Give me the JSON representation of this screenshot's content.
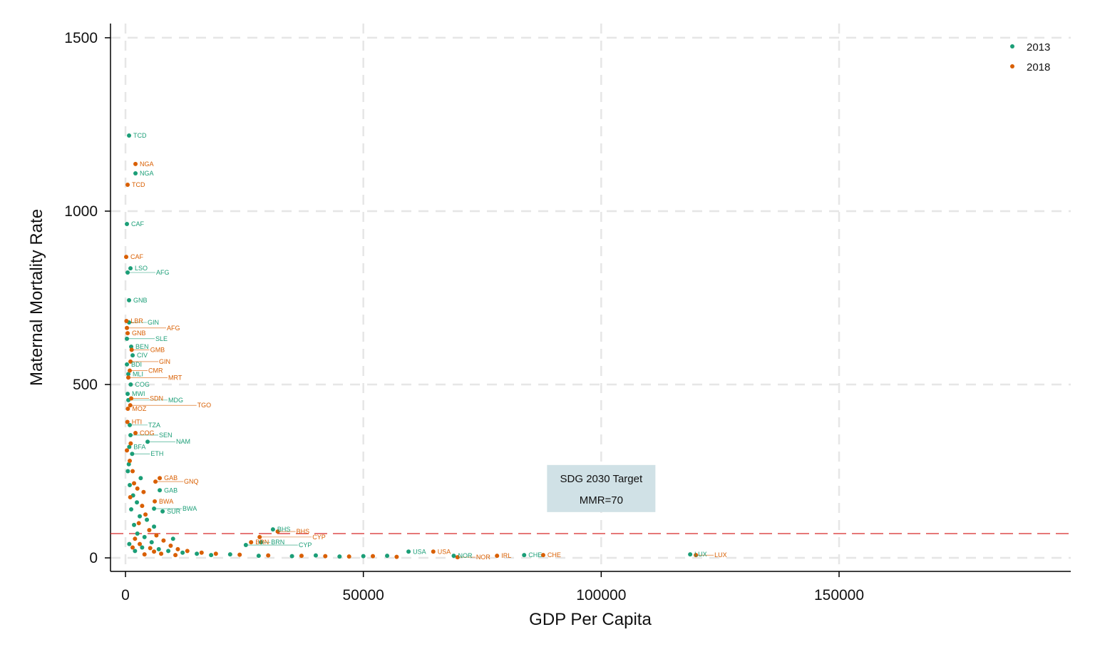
{
  "chart_data": {
    "type": "scatter",
    "title": "",
    "xlabel": "GDP Per Capita",
    "ylabel": "Maternal Mortality Rate",
    "xlim": [
      -3150,
      198700
    ],
    "ylim": [
      -39,
      1541
    ],
    "xticks": [
      0,
      50000,
      100000,
      150000
    ],
    "yticks": [
      0,
      500,
      1000,
      1500
    ],
    "grid": true,
    "legend_position": "top-right",
    "reference_line": {
      "y": 70,
      "color": "#d62728",
      "style": "dashed"
    },
    "annotation": {
      "lines": [
        "SDG 2030 Target",
        "MMR=70"
      ],
      "x": 100000,
      "y": 200,
      "background": "#d0e1e6"
    },
    "series": [
      {
        "name": "2013",
        "color": "#1b9e77",
        "points": [
          [
            750,
            1218,
            "TCD"
          ],
          [
            2100,
            1109,
            "NGA"
          ],
          [
            300,
            963,
            "CAF"
          ],
          [
            1050,
            835,
            "LSO"
          ],
          [
            450,
            823,
            "AFG"
          ],
          [
            750,
            743,
            "GNB"
          ],
          [
            750,
            679,
            "GIN"
          ],
          [
            300,
            632,
            "SLE"
          ],
          [
            1200,
            609,
            "BEN"
          ],
          [
            1500,
            584,
            "CIV"
          ],
          [
            300,
            558,
            "BDI"
          ],
          [
            600,
            530,
            "MLI"
          ],
          [
            1100,
            500,
            "COG"
          ],
          [
            450,
            473,
            "MWI"
          ],
          [
            600,
            455,
            "MDG"
          ],
          [
            900,
            383,
            "TZA"
          ],
          [
            1050,
            354,
            "SEN"
          ],
          [
            4650,
            335,
            "NAM"
          ],
          [
            800,
            320,
            "BFA"
          ],
          [
            1400,
            300,
            "ETH"
          ],
          [
            7200,
            195,
            "GAB"
          ],
          [
            6000,
            142,
            "BWA"
          ],
          [
            7800,
            134,
            "SUR"
          ],
          [
            31000,
            82,
            "BHS"
          ],
          [
            25300,
            37,
            "CYP"
          ],
          [
            28500,
            45,
            "BRN"
          ],
          [
            59500,
            18,
            "USA"
          ],
          [
            69000,
            6,
            "NOR"
          ],
          [
            83800,
            8,
            "CHE"
          ],
          [
            118700,
            10,
            "LUX"
          ],
          [
            500,
            250,
            ""
          ],
          [
            900,
            210,
            ""
          ],
          [
            1600,
            180,
            ""
          ],
          [
            2400,
            160,
            ""
          ],
          [
            3000,
            120,
            ""
          ],
          [
            1800,
            95,
            ""
          ],
          [
            2500,
            70,
            ""
          ],
          [
            4000,
            60,
            ""
          ],
          [
            5500,
            45,
            ""
          ],
          [
            3500,
            30,
            ""
          ],
          [
            7000,
            25,
            ""
          ],
          [
            9000,
            20,
            ""
          ],
          [
            12000,
            15,
            ""
          ],
          [
            15000,
            12,
            ""
          ],
          [
            18000,
            8,
            ""
          ],
          [
            22000,
            10,
            ""
          ],
          [
            28000,
            6,
            ""
          ],
          [
            35000,
            5,
            ""
          ],
          [
            40000,
            7,
            ""
          ],
          [
            45000,
            4,
            ""
          ],
          [
            50000,
            5,
            ""
          ],
          [
            55000,
            6,
            ""
          ],
          [
            2000,
            20,
            ""
          ],
          [
            800,
            40,
            ""
          ],
          [
            6000,
            90,
            ""
          ],
          [
            10000,
            55,
            ""
          ],
          [
            1200,
            140,
            ""
          ],
          [
            4500,
            110,
            ""
          ],
          [
            3200,
            230,
            ""
          ],
          [
            700,
            270,
            ""
          ]
        ]
      },
      {
        "name": "2018",
        "color": "#d95f02",
        "points": [
          [
            2100,
            1136,
            "NGA"
          ],
          [
            450,
            1076,
            "TCD"
          ],
          [
            150,
            868,
            "CAF"
          ],
          [
            200,
            683,
            "LBR"
          ],
          [
            300,
            663,
            "AFG"
          ],
          [
            450,
            648,
            "GNB"
          ],
          [
            1050,
            566,
            "GIN"
          ],
          [
            1300,
            600,
            "GMB"
          ],
          [
            900,
            540,
            "CMR"
          ],
          [
            600,
            520,
            "MRT"
          ],
          [
            1200,
            460,
            "SDN"
          ],
          [
            500,
            430,
            "MOZ"
          ],
          [
            1000,
            440,
            "TGO"
          ],
          [
            400,
            392,
            "HTI"
          ],
          [
            2100,
            360,
            "COG"
          ],
          [
            7200,
            230,
            "GAB"
          ],
          [
            6300,
            220,
            "GNQ"
          ],
          [
            6150,
            163,
            "BWA"
          ],
          [
            32000,
            76,
            "BHS"
          ],
          [
            28200,
            60,
            "CYP"
          ],
          [
            26400,
            45,
            "BRN"
          ],
          [
            64700,
            18,
            "USA"
          ],
          [
            78100,
            6,
            "IRL"
          ],
          [
            69800,
            2,
            "NOR"
          ],
          [
            87800,
            8,
            "CHE"
          ],
          [
            119900,
            8,
            "LUX"
          ],
          [
            300,
            310,
            ""
          ],
          [
            900,
            280,
            ""
          ],
          [
            1500,
            250,
            ""
          ],
          [
            2500,
            200,
            ""
          ],
          [
            3500,
            150,
            ""
          ],
          [
            4200,
            125,
            ""
          ],
          [
            2800,
            100,
            ""
          ],
          [
            5000,
            80,
            ""
          ],
          [
            6500,
            65,
            ""
          ],
          [
            8000,
            50,
            ""
          ],
          [
            3000,
            40,
            ""
          ],
          [
            1500,
            30,
            ""
          ],
          [
            9500,
            35,
            ""
          ],
          [
            11000,
            25,
            ""
          ],
          [
            13000,
            20,
            ""
          ],
          [
            16000,
            15,
            ""
          ],
          [
            19000,
            12,
            ""
          ],
          [
            24000,
            9,
            ""
          ],
          [
            30000,
            7,
            ""
          ],
          [
            37000,
            6,
            ""
          ],
          [
            42000,
            5,
            ""
          ],
          [
            47000,
            4,
            ""
          ],
          [
            52000,
            5,
            ""
          ],
          [
            57000,
            3,
            ""
          ],
          [
            4000,
            10,
            ""
          ],
          [
            6000,
            18,
            ""
          ],
          [
            2000,
            55,
            ""
          ],
          [
            7500,
            12,
            ""
          ],
          [
            5200,
            28,
            ""
          ],
          [
            1000,
            175,
            ""
          ],
          [
            3800,
            190,
            ""
          ],
          [
            1800,
            215,
            ""
          ],
          [
            1100,
            330,
            ""
          ],
          [
            10500,
            8,
            ""
          ]
        ]
      }
    ]
  }
}
